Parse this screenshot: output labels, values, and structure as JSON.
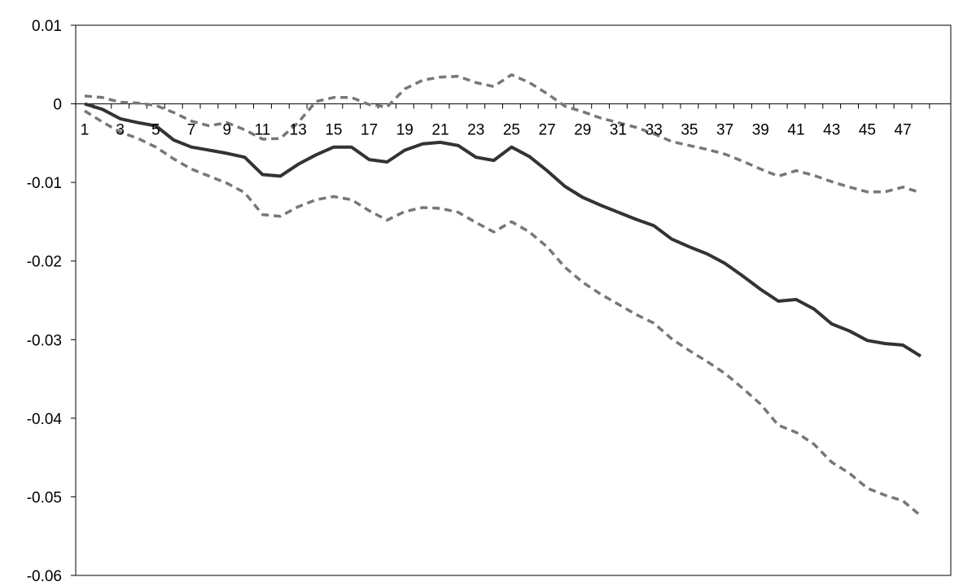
{
  "chart_data": {
    "type": "line",
    "title": "",
    "xlabel": "",
    "ylabel": "",
    "x": [
      1,
      2,
      3,
      4,
      5,
      6,
      7,
      8,
      9,
      10,
      11,
      12,
      13,
      14,
      15,
      16,
      17,
      18,
      19,
      20,
      21,
      22,
      23,
      24,
      25,
      26,
      27,
      28,
      29,
      30,
      31,
      32,
      33,
      34,
      35,
      36,
      37,
      38,
      39,
      40,
      41,
      42,
      43,
      44,
      45,
      46,
      47,
      48
    ],
    "x_tick_labels": [
      "1",
      "3",
      "5",
      "7",
      "9",
      "11",
      "13",
      "15",
      "17",
      "19",
      "21",
      "23",
      "25",
      "27",
      "29",
      "31",
      "33",
      "35",
      "37",
      "39",
      "41",
      "43",
      "45",
      "47"
    ],
    "y_tick_labels": [
      "0.01",
      "0",
      "-0.01",
      "-0.02",
      "-0.03",
      "-0.04",
      "-0.05",
      "-0.06"
    ],
    "ylim": [
      -0.06,
      0.01
    ],
    "grid": false,
    "legend": "none",
    "series": [
      {
        "style": "solid",
        "color": "#333333",
        "values": [
          0,
          -0.0007,
          -0.0019,
          -0.0024,
          -0.0028,
          -0.0046,
          -0.0055,
          -0.0059,
          -0.0063,
          -0.0068,
          -0.009,
          -0.0092,
          -0.0077,
          -0.0065,
          -0.0055,
          -0.0055,
          -0.0071,
          -0.0074,
          -0.0059,
          -0.0051,
          -0.0049,
          -0.0053,
          -0.0068,
          -0.0072,
          -0.0055,
          -0.0067,
          -0.0085,
          -0.0105,
          -0.0119,
          -0.0129,
          -0.0138,
          -0.0147,
          -0.0155,
          -0.0172,
          -0.0182,
          -0.0191,
          -0.0203,
          -0.0219,
          -0.0236,
          -0.0251,
          -0.0249,
          -0.0261,
          -0.028,
          -0.0289,
          -0.0301,
          -0.0305,
          -0.0307,
          -0.0321
        ]
      },
      {
        "style": "dashed",
        "color": "#777777",
        "values": [
          0.001,
          0.0008,
          0.0002,
          0.0001,
          -0.0002,
          -0.0011,
          -0.0022,
          -0.0028,
          -0.0024,
          -0.0033,
          -0.0045,
          -0.0044,
          -0.0024,
          0.0003,
          0.0008,
          0.0008,
          -0.0001,
          -0.0004,
          0.0019,
          0.003,
          0.0034,
          0.0035,
          0.0027,
          0.0022,
          0.0037,
          0.0027,
          0.0013,
          -0.0003,
          -0.001,
          -0.0018,
          -0.0024,
          -0.003,
          -0.0038,
          -0.0048,
          -0.0053,
          -0.0058,
          -0.0064,
          -0.0073,
          -0.0083,
          -0.0092,
          -0.0085,
          -0.0091,
          -0.0099,
          -0.0106,
          -0.0112,
          -0.0112,
          -0.0106,
          -0.0113
        ]
      },
      {
        "style": "dashed",
        "color": "#777777",
        "values": [
          -0.0009,
          -0.0023,
          -0.0036,
          -0.0044,
          -0.0055,
          -0.007,
          -0.0083,
          -0.0092,
          -0.0101,
          -0.0113,
          -0.0141,
          -0.0143,
          -0.0131,
          -0.0122,
          -0.0118,
          -0.0122,
          -0.0136,
          -0.0148,
          -0.0137,
          -0.0132,
          -0.0133,
          -0.0138,
          -0.0151,
          -0.0163,
          -0.015,
          -0.0163,
          -0.0182,
          -0.0208,
          -0.0227,
          -0.0242,
          -0.0255,
          -0.0268,
          -0.0279,
          -0.0299,
          -0.0314,
          -0.0328,
          -0.0343,
          -0.0362,
          -0.0382,
          -0.0409,
          -0.0418,
          -0.0433,
          -0.0456,
          -0.047,
          -0.0489,
          -0.0498,
          -0.0505,
          -0.0524
        ]
      }
    ]
  }
}
